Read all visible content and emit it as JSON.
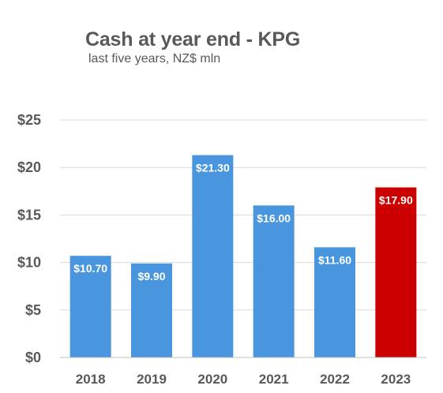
{
  "chart_data": {
    "type": "bar",
    "title": "Cash at year end - KPG",
    "subtitle": "last five years, NZ$ mln",
    "categories": [
      "2018",
      "2019",
      "2020",
      "2021",
      "2022",
      "2023"
    ],
    "values": [
      10.7,
      9.9,
      21.3,
      16.0,
      11.6,
      17.9
    ],
    "value_labels": [
      "$10.70",
      "$9.90",
      "$21.30",
      "$16.00",
      "$11.60",
      "$17.90"
    ],
    "bar_colors": [
      "#4a96de",
      "#4a96de",
      "#4a96de",
      "#4a96de",
      "#4a96de",
      "#cc0000"
    ],
    "yticks": [
      0,
      5,
      10,
      15,
      20,
      25
    ],
    "ytick_labels": [
      "$0",
      "$5",
      "$10",
      "$15",
      "$20",
      "$25"
    ],
    "ylim": [
      0,
      25
    ],
    "xlabel": "",
    "ylabel": "",
    "grid": true,
    "legend": "none"
  },
  "colors": {
    "grid": "#d9d9d9",
    "axis": "#bfbfbf",
    "text": "#595959"
  }
}
